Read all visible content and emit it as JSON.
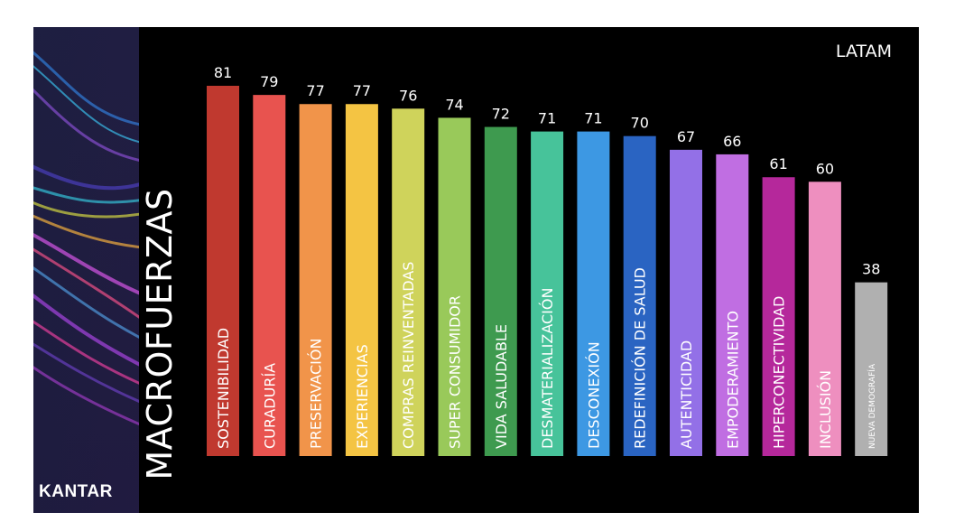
{
  "brand": {
    "logo_text": "KANTAR"
  },
  "region_label": "LATAM",
  "chart_data": {
    "type": "bar",
    "title": "MACROFUERZAS",
    "categories": [
      "SOSTENIBILIDAD",
      "CURADURÍA",
      "PRESERVACIÓN",
      "EXPERIENCIAS",
      "COMPRAS REINVENTADAS",
      "SUPER CONSUMIDOR",
      "VIDA SALUDABLE",
      "DESMATERIALIZACIÓN",
      "DESCONEXIÓN",
      "REDEFINICIÓN DE SALUD",
      "AUTENTICIDAD",
      "EMPODERAMIENTO",
      "HIPERCONECTIVIDAD",
      "INCLUSIÓN",
      "NUEVA DEMOGRAFÍA"
    ],
    "values": [
      81,
      79,
      77,
      77,
      76,
      74,
      72,
      71,
      71,
      70,
      67,
      66,
      61,
      60,
      38
    ],
    "colors": [
      "#c0392f",
      "#e8534f",
      "#f1944a",
      "#f4c443",
      "#cfd35b",
      "#99c95a",
      "#3e9a4f",
      "#47c39a",
      "#3d98e3",
      "#2a64c2",
      "#9370e7",
      "#c06ee2",
      "#b5289b",
      "#ee8fbf",
      "#b0b0b0"
    ],
    "xlabel": "",
    "ylabel": "",
    "grid": false,
    "legend": "none"
  }
}
